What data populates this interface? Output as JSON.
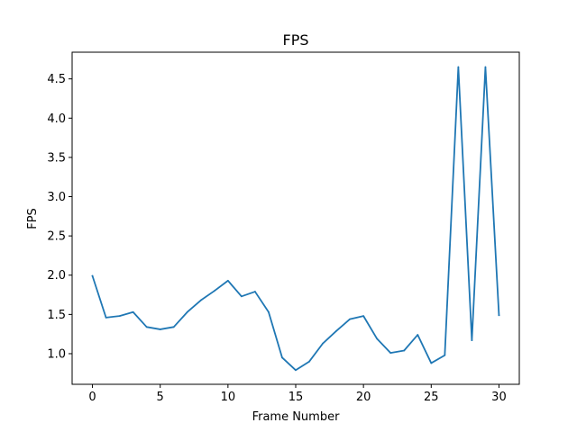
{
  "chart_data": {
    "type": "line",
    "title": "FPS",
    "xlabel": "Frame Number",
    "ylabel": "FPS",
    "xlim": [
      -1.5,
      31.5
    ],
    "ylim": [
      0.61,
      4.84
    ],
    "xticks": [
      0,
      5,
      10,
      15,
      20,
      25,
      30
    ],
    "xtick_labels": [
      "0",
      "5",
      "10",
      "15",
      "20",
      "25",
      "30"
    ],
    "yticks": [
      1.0,
      1.5,
      2.0,
      2.5,
      3.0,
      3.5,
      4.0,
      4.5
    ],
    "ytick_labels": [
      "1.0",
      "1.5",
      "2.0",
      "2.5",
      "3.0",
      "3.5",
      "4.0",
      "4.5"
    ],
    "grid": false,
    "series": [
      {
        "color": "#1f77b4",
        "x": [
          0,
          1,
          2,
          3,
          4,
          5,
          6,
          7,
          8,
          9,
          10,
          11,
          12,
          13,
          14,
          15,
          16,
          17,
          18,
          19,
          20,
          21,
          22,
          23,
          24,
          25,
          26,
          27,
          28,
          29,
          30
        ],
        "y": [
          1.99,
          1.46,
          1.48,
          1.53,
          1.34,
          1.31,
          1.34,
          1.53,
          1.68,
          1.8,
          1.93,
          1.73,
          1.79,
          1.53,
          0.95,
          0.79,
          0.9,
          1.13,
          1.29,
          1.44,
          1.48,
          1.19,
          1.01,
          1.04,
          1.24,
          0.88,
          0.98,
          4.65,
          1.17,
          4.65,
          1.49
        ]
      }
    ]
  }
}
